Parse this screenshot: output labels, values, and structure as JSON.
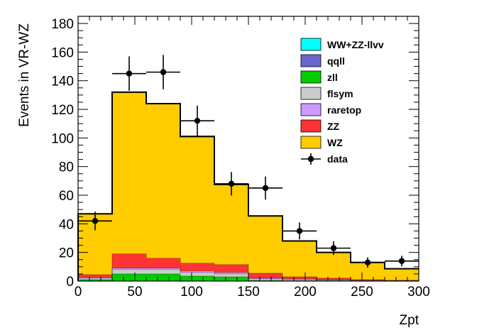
{
  "chart_data": {
    "type": "bar",
    "subtype": "stacked-histogram",
    "title": "",
    "xlabel": "Zpt",
    "ylabel": "Events in VR-WZ",
    "xlim": [
      0,
      300
    ],
    "ylim": [
      0,
      185
    ],
    "x_ticks": [
      0,
      50,
      100,
      150,
      200,
      250,
      300
    ],
    "y_ticks": [
      0,
      20,
      40,
      60,
      80,
      100,
      120,
      140,
      160,
      180
    ],
    "bin_edges": [
      0,
      30,
      60,
      90,
      120,
      150,
      180,
      210,
      240,
      270,
      300
    ],
    "series": [
      {
        "name": "WW+ZZ-llvv",
        "color": "#00ffff",
        "values": [
          0,
          0,
          0,
          0,
          0,
          0,
          0,
          0,
          0,
          0
        ]
      },
      {
        "name": "qqll",
        "color": "#6666cc",
        "values": [
          0,
          0,
          0,
          0,
          0,
          0,
          0,
          0,
          0,
          0
        ]
      },
      {
        "name": "zll",
        "color": "#00cc00",
        "values": [
          1,
          5,
          5,
          3.5,
          3,
          0.5,
          0.3,
          0.2,
          0,
          0
        ]
      },
      {
        "name": "flsym",
        "color": "#cccccc",
        "values": [
          1,
          3,
          3,
          2.5,
          2,
          1,
          0.7,
          0.5,
          0.3,
          0.2
        ]
      },
      {
        "name": "raretop",
        "color": "#cc99ff",
        "values": [
          0.5,
          1,
          1,
          1,
          1,
          0.5,
          0.5,
          0.3,
          0.2,
          0.1
        ]
      },
      {
        "name": "ZZ",
        "color": "#ff3333",
        "values": [
          2,
          10,
          7,
          5.5,
          5.5,
          3.5,
          1.5,
          1,
          0.5,
          0.3
        ]
      },
      {
        "name": "WZ",
        "color": "#ffcc00",
        "values": [
          42.5,
          113,
          108,
          89,
          56,
          40,
          25,
          18,
          12,
          8
        ]
      }
    ],
    "total_mc_outline": [
      47,
      132,
      124,
      101,
      67.5,
      45.5,
      28,
      20,
      13,
      8.6
    ],
    "data": {
      "name": "data",
      "x": [
        15,
        45,
        75,
        105,
        135,
        165,
        195,
        225,
        255,
        285
      ],
      "y": [
        42,
        145,
        146,
        112,
        68,
        65,
        35,
        23,
        13,
        14
      ],
      "yerr": [
        6.5,
        12,
        12,
        10.6,
        8.2,
        8.1,
        5.9,
        4.8,
        3.6,
        3.7
      ],
      "xerr": 15,
      "color": "#000000"
    },
    "legend": {
      "position": "top-right",
      "entries": [
        "WW+ZZ-llvv",
        "qqll",
        "zll",
        "flsym",
        "raretop",
        "ZZ",
        "WZ",
        "data"
      ]
    },
    "grid": false
  }
}
